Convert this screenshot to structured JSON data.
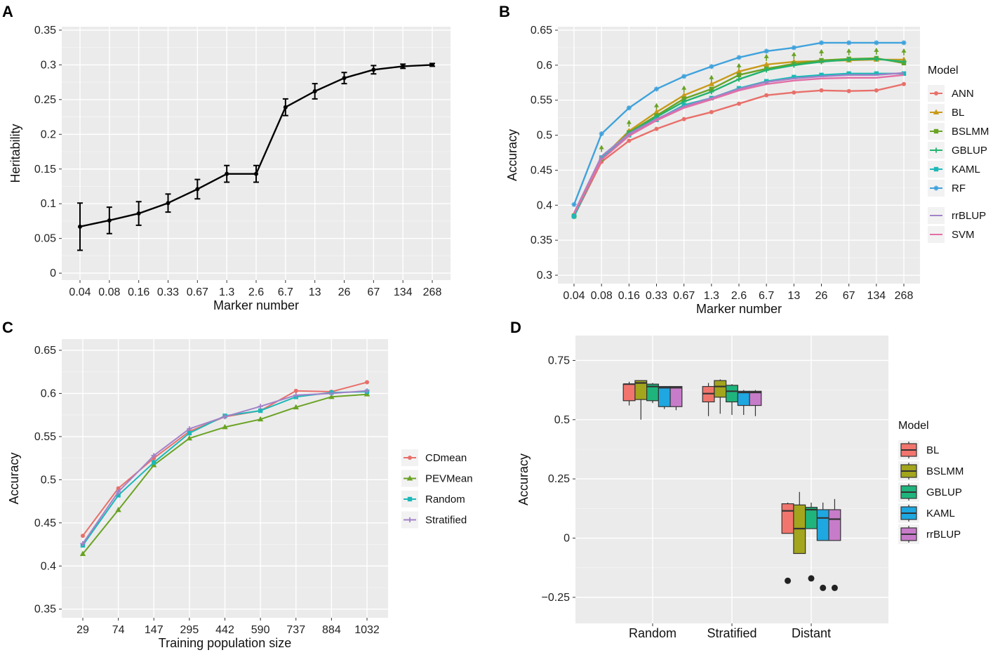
{
  "chart_data": [
    {
      "panel": "A",
      "type": "line",
      "title": "",
      "xlabel": "Marker number",
      "ylabel": "Heritability",
      "categories": [
        "0.04",
        "0.08",
        "0.16",
        "0.33",
        "0.67",
        "1.3",
        "2.6",
        "6.7",
        "13",
        "26",
        "67",
        "134",
        "268"
      ],
      "y_ticks": [
        0,
        0.05,
        0.1,
        0.15,
        0.2,
        0.25,
        0.3,
        0.35
      ],
      "y_tick_labels": [
        "0",
        "0.05",
        "0.1",
        "0.15",
        "0.2",
        "0.25",
        "0.3",
        "0.35"
      ],
      "ylim": [
        -0.01,
        0.355
      ],
      "series": [
        {
          "name": "Heritability",
          "color": "#000000",
          "values": [
            0.067,
            0.076,
            0.086,
            0.101,
            0.121,
            0.143,
            0.143,
            0.239,
            0.262,
            0.281,
            0.293,
            0.298,
            0.3
          ],
          "err": [
            0.034,
            0.019,
            0.017,
            0.013,
            0.014,
            0.012,
            0.012,
            0.012,
            0.011,
            0.008,
            0.006,
            0.003,
            0.002
          ]
        }
      ]
    },
    {
      "panel": "B",
      "type": "line",
      "xlabel": "Marker number",
      "ylabel": "Accuracy",
      "categories": [
        "0.04",
        "0.08",
        "0.16",
        "0.33",
        "0.67",
        "1.3",
        "2.6",
        "6.7",
        "13",
        "26",
        "67",
        "134",
        "268"
      ],
      "y_ticks": [
        0.3,
        0.35,
        0.4,
        0.45,
        0.5,
        0.55,
        0.6,
        0.65
      ],
      "y_tick_labels": [
        "0.3",
        "0.35",
        "0.4",
        "0.45",
        "0.5",
        "0.55",
        "0.6",
        "0.65"
      ],
      "ylim": [
        0.288,
        0.655
      ],
      "legend_title": "Model",
      "series": [
        {
          "name": "ANN",
          "color": "#e8706a",
          "marker": "circle",
          "values": [
            0.384,
            0.462,
            0.492,
            0.509,
            0.523,
            0.533,
            0.545,
            0.557,
            0.561,
            0.564,
            0.563,
            0.564,
            0.573
          ]
        },
        {
          "name": "BL",
          "color": "#c99a1a",
          "marker": "triangle",
          "values": [
            0.386,
            0.467,
            0.506,
            0.533,
            0.557,
            0.573,
            0.591,
            0.601,
            0.605,
            0.606,
            0.607,
            0.608,
            0.608
          ]
        },
        {
          "name": "BSLMM",
          "color": "#6aa324",
          "marker": "square",
          "values": [
            0.385,
            0.466,
            0.504,
            0.528,
            0.552,
            0.566,
            0.586,
            0.595,
            0.602,
            0.607,
            0.609,
            0.61,
            0.603
          ]
        },
        {
          "name": "GBLUP",
          "color": "#22b36e",
          "marker": "plus",
          "values": [
            0.385,
            0.466,
            0.503,
            0.526,
            0.548,
            0.562,
            0.58,
            0.593,
            0.6,
            0.605,
            0.608,
            0.609,
            0.605
          ]
        },
        {
          "name": "KAML",
          "color": "#1cb8b8",
          "marker": "square",
          "values": [
            0.384,
            0.468,
            0.5,
            0.522,
            0.543,
            0.553,
            0.567,
            0.577,
            0.583,
            0.586,
            0.588,
            0.588,
            0.588
          ]
        },
        {
          "name": "RF",
          "color": "#3fa2dc",
          "marker": "asterisk",
          "values": [
            0.401,
            0.502,
            0.539,
            0.566,
            0.584,
            0.598,
            0.611,
            0.62,
            0.625,
            0.632,
            0.632,
            0.632,
            0.632
          ]
        },
        {
          "name": "rrBLUP",
          "color": "#a382c9",
          "marker": "none",
          "values": [
            0.389,
            0.47,
            0.502,
            0.523,
            0.541,
            0.553,
            0.566,
            0.576,
            0.581,
            0.584,
            0.586,
            0.586,
            0.589
          ]
        },
        {
          "name": "SVM",
          "color": "#e36fa6",
          "marker": "none",
          "values": [
            0.388,
            0.465,
            0.499,
            0.521,
            0.539,
            0.551,
            0.564,
            0.573,
            0.578,
            0.581,
            0.582,
            0.582,
            0.586
          ]
        }
      ],
      "extra_points": {
        "name": "BSLMM markers",
        "color": "#6aa324",
        "values": [
          0.385,
          0.481,
          0.517,
          0.541,
          0.566,
          0.581,
          0.598,
          0.611,
          0.614,
          0.618,
          0.619,
          0.62,
          0.619
        ]
      }
    },
    {
      "panel": "C",
      "type": "line",
      "xlabel": "Training population size",
      "ylabel": "Accuracy",
      "categories": [
        "29",
        "74",
        "147",
        "295",
        "442",
        "590",
        "737",
        "884",
        "1032"
      ],
      "y_ticks": [
        0.35,
        0.4,
        0.45,
        0.5,
        0.55,
        0.6,
        0.65
      ],
      "y_tick_labels": [
        "0.35",
        "0.4",
        "0.45",
        "0.5",
        "0.55",
        "0.6",
        "0.65"
      ],
      "ylim": [
        0.34,
        0.663
      ],
      "series": [
        {
          "name": "CDmean",
          "color": "#e8706a",
          "marker": "circle",
          "values": [
            0.435,
            0.49,
            0.525,
            0.556,
            0.573,
            0.58,
            0.603,
            0.602,
            0.613
          ]
        },
        {
          "name": "PEVMean",
          "color": "#6aa324",
          "marker": "triangle",
          "values": [
            0.414,
            0.465,
            0.517,
            0.548,
            0.561,
            0.57,
            0.584,
            0.596,
            0.599
          ]
        },
        {
          "name": "Random",
          "color": "#1cb8b8",
          "marker": "square",
          "values": [
            0.424,
            0.482,
            0.52,
            0.554,
            0.574,
            0.58,
            0.596,
            0.601,
            0.602
          ]
        },
        {
          "name": "Stratified",
          "color": "#a382c9",
          "marker": "plus",
          "values": [
            0.426,
            0.486,
            0.528,
            0.559,
            0.573,
            0.585,
            0.598,
            0.6,
            0.603
          ]
        }
      ]
    },
    {
      "panel": "D",
      "type": "box",
      "xlabel": "",
      "ylabel": "Accuracy",
      "categories": [
        "Random",
        "Stratified",
        "Distant"
      ],
      "y_ticks": [
        -0.25,
        0,
        0.25,
        0.5,
        0.75
      ],
      "y_tick_labels": [
        "−0.25",
        "0",
        "0.25",
        "0.5",
        "0.75"
      ],
      "ylim": [
        -0.36,
        0.855
      ],
      "legend_title": "Model",
      "models": [
        {
          "name": "BL",
          "color": "#f2756d"
        },
        {
          "name": "BSLMM",
          "color": "#a3a51c"
        },
        {
          "name": "GBLUP",
          "color": "#1fb47c"
        },
        {
          "name": "KAML",
          "color": "#1ea7e0"
        },
        {
          "name": "rrBLUP",
          "color": "#c77cc9"
        }
      ],
      "boxes": [
        [
          {
            "min": 0.56,
            "q1": 0.58,
            "med": 0.65,
            "q3": 0.65,
            "max": 0.66
          },
          {
            "min": 0.5,
            "q1": 0.585,
            "med": 0.655,
            "q3": 0.665,
            "max": 0.665
          },
          {
            "min": 0.57,
            "q1": 0.58,
            "med": 0.64,
            "q3": 0.65,
            "max": 0.655
          },
          {
            "min": 0.545,
            "q1": 0.555,
            "med": 0.635,
            "q3": 0.64,
            "max": 0.64
          },
          {
            "min": 0.54,
            "q1": 0.555,
            "med": 0.635,
            "q3": 0.64,
            "max": 0.64
          }
        ],
        [
          {
            "min": 0.515,
            "q1": 0.575,
            "med": 0.61,
            "q3": 0.64,
            "max": 0.655
          },
          {
            "min": 0.525,
            "q1": 0.595,
            "med": 0.64,
            "q3": 0.665,
            "max": 0.67
          },
          {
            "min": 0.52,
            "q1": 0.575,
            "med": 0.62,
            "q3": 0.645,
            "max": 0.65
          },
          {
            "min": 0.52,
            "q1": 0.56,
            "med": 0.615,
            "q3": 0.62,
            "max": 0.625
          },
          {
            "min": 0.515,
            "q1": 0.56,
            "med": 0.615,
            "q3": 0.62,
            "max": 0.625
          }
        ],
        [
          {
            "min": 0.02,
            "q1": 0.02,
            "med": 0.115,
            "q3": 0.145,
            "max": 0.15,
            "outliers": [
              -0.18
            ]
          },
          {
            "min": -0.065,
            "q1": -0.065,
            "med": 0.04,
            "q3": 0.14,
            "max": 0.195
          },
          {
            "min": 0.04,
            "q1": 0.04,
            "med": 0.12,
            "q3": 0.13,
            "max": 0.15,
            "outliers": [
              -0.17
            ]
          },
          {
            "min": -0.01,
            "q1": -0.01,
            "med": 0.085,
            "q3": 0.12,
            "max": 0.15,
            "outliers": [
              -0.21
            ]
          },
          {
            "min": -0.01,
            "q1": -0.01,
            "med": 0.08,
            "q3": 0.12,
            "max": 0.165,
            "outliers": [
              -0.21
            ]
          }
        ]
      ]
    }
  ],
  "panels": {
    "a": "A",
    "b": "B",
    "c": "C",
    "d": "D"
  }
}
